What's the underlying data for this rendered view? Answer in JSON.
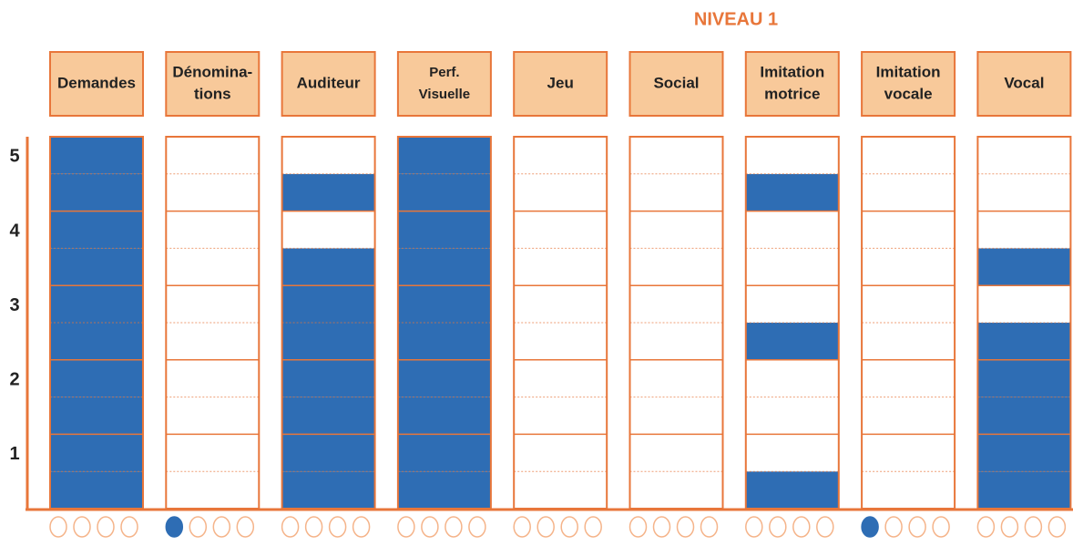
{
  "title": "NIVEAU 1",
  "levels": [
    "5",
    "4",
    "3",
    "2",
    "1"
  ],
  "columns": [
    {
      "label": [
        "Demandes"
      ],
      "cells": [
        1,
        1,
        1,
        1,
        1,
        1,
        1,
        1,
        1,
        1
      ],
      "circles": [
        0,
        0,
        0,
        0
      ]
    },
    {
      "label": [
        "Dénomina-",
        "tions"
      ],
      "cells": [
        0,
        0,
        0,
        0,
        0,
        0,
        0,
        0,
        0,
        0
      ],
      "circles": [
        1,
        0,
        0,
        0
      ]
    },
    {
      "label": [
        "Auditeur"
      ],
      "cells": [
        1,
        1,
        1,
        1,
        1,
        1,
        1,
        0,
        1,
        0
      ],
      "circles": [
        0,
        0,
        0,
        0
      ]
    },
    {
      "label": [
        "Perf.",
        "Visuelle"
      ],
      "cells": [
        1,
        1,
        1,
        1,
        1,
        1,
        1,
        1,
        1,
        1
      ],
      "circles": [
        0,
        0,
        0,
        0
      ]
    },
    {
      "label": [
        "Jeu"
      ],
      "cells": [
        0,
        0,
        0,
        0,
        0,
        0,
        0,
        0,
        0,
        0
      ],
      "circles": [
        0,
        0,
        0,
        0
      ]
    },
    {
      "label": [
        "Social"
      ],
      "cells": [
        0,
        0,
        0,
        0,
        0,
        0,
        0,
        0,
        0,
        0
      ],
      "circles": [
        0,
        0,
        0,
        0
      ]
    },
    {
      "label": [
        "Imitation",
        "motrice"
      ],
      "cells": [
        1,
        0,
        0,
        0,
        1,
        0,
        0,
        0,
        1,
        0
      ],
      "circles": [
        0,
        0,
        0,
        0
      ]
    },
    {
      "label": [
        "Imitation",
        "vocale"
      ],
      "cells": [
        0,
        0,
        0,
        0,
        0,
        0,
        0,
        0,
        0,
        0
      ],
      "circles": [
        1,
        0,
        0,
        0
      ]
    },
    {
      "label": [
        "Vocal"
      ],
      "cells": [
        1,
        1,
        1,
        1,
        1,
        0,
        1,
        0,
        0,
        0
      ],
      "circles": [
        0,
        0,
        0,
        0
      ]
    }
  ]
}
